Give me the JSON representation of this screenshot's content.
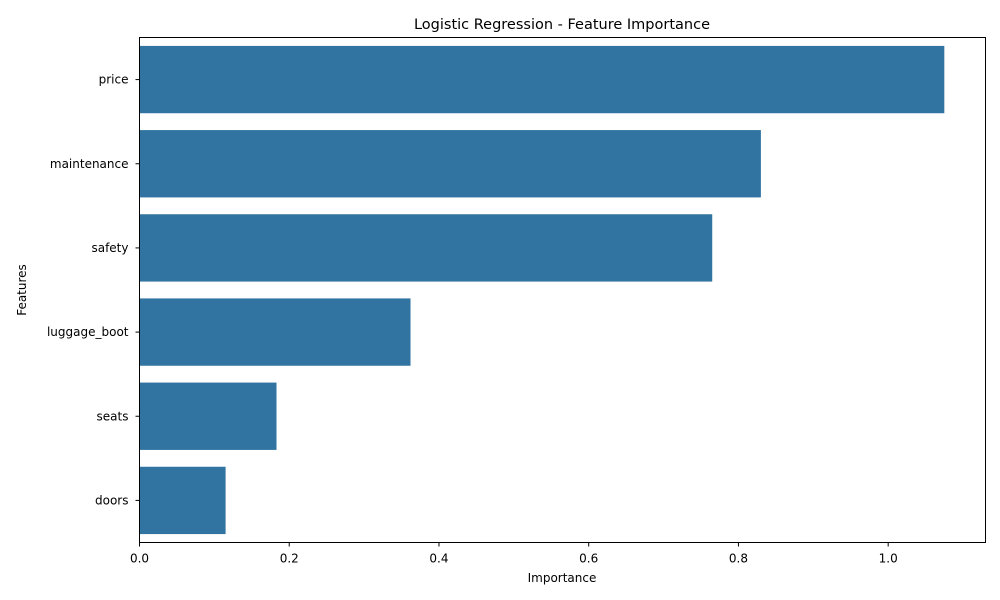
{
  "chart_data": {
    "type": "bar",
    "orientation": "horizontal",
    "title": "Logistic Regression - Feature Importance",
    "xlabel": "Importance",
    "ylabel": "Features",
    "categories": [
      "price",
      "maintenance",
      "safety",
      "luggage_boot",
      "seats",
      "doors"
    ],
    "values": [
      1.075,
      0.83,
      0.765,
      0.362,
      0.183,
      0.115
    ],
    "xlim": [
      0,
      1.13
    ],
    "xticks": [
      0.0,
      0.2,
      0.4,
      0.6,
      0.8,
      1.0
    ],
    "xtick_labels": [
      "0.0",
      "0.2",
      "0.4",
      "0.6",
      "0.8",
      "1.0"
    ],
    "bar_color": "#3274a1",
    "grid": false,
    "legend": "none"
  }
}
